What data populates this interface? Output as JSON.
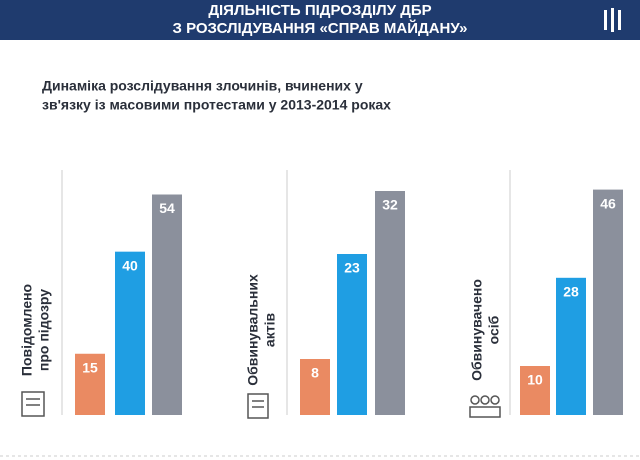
{
  "header": {
    "title": [
      "ДІЯЛЬНІСТЬ ПІДРОЗДІЛУ ДБР",
      "З РОЗСЛІДУВАННЯ «СПРАВ МАЙДАНУ»"
    ]
  },
  "subtitle": [
    "Динаміка розслідування злочинів, вчинених у",
    "зв'язку із масовими протестами у 2013-2014 роках"
  ],
  "chart_data": [
    {
      "type": "bar",
      "label": [
        "Повідомлено",
        "про підозру"
      ],
      "categories": [
        null,
        null,
        null
      ],
      "values": [
        15,
        40,
        54
      ],
      "colors": [
        "#ea8a62",
        "#1f9ee3",
        "#8b909c"
      ],
      "ylim": [
        0,
        60
      ]
    },
    {
      "type": "bar",
      "label": [
        "Обвинувальних",
        "актів"
      ],
      "categories": [
        null,
        null,
        null
      ],
      "values": [
        8,
        23,
        32
      ],
      "colors": [
        "#ea8a62",
        "#1f9ee3",
        "#8b909c"
      ],
      "ylim": [
        0,
        35
      ]
    },
    {
      "type": "bar",
      "label": [
        "Обвинувачено",
        "осіб"
      ],
      "categories": [
        null,
        null,
        null
      ],
      "values": [
        10,
        28,
        46
      ],
      "colors": [
        "#ea8a62",
        "#1f9ee3",
        "#8b909c"
      ],
      "ylim": [
        0,
        50
      ]
    }
  ]
}
